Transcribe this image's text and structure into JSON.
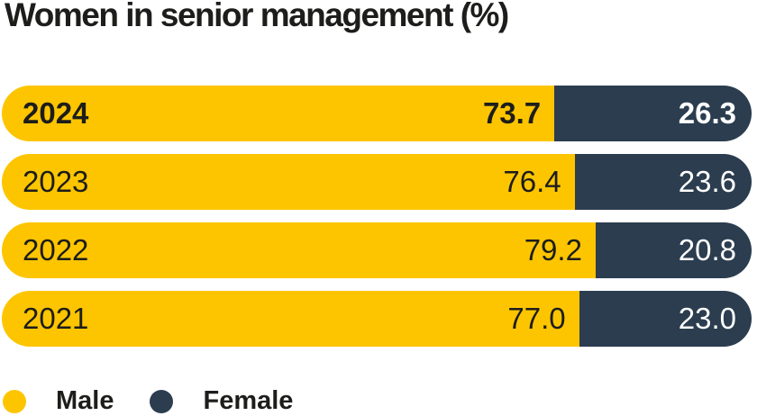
{
  "title": "Women in senior management (%)",
  "colors": {
    "male": "#FDC500",
    "female": "#2B3D4F",
    "text": "#1D1D1B",
    "value_text_on_dark": "#FFFFFF"
  },
  "legend": {
    "items": [
      {
        "label": "Male",
        "color_key": "male",
        "swatch": "circle"
      },
      {
        "label": "Female",
        "color_key": "female",
        "swatch": "circle"
      }
    ],
    "position": "bottom-left"
  },
  "chart_data": {
    "type": "bar",
    "orientation": "horizontal",
    "stacked": true,
    "title": "Women in senior management (%)",
    "categories": [
      "2024",
      "2023",
      "2022",
      "2021"
    ],
    "series": [
      {
        "name": "Male",
        "values": [
          73.7,
          76.4,
          79.2,
          77.0
        ]
      },
      {
        "name": "Female",
        "values": [
          26.3,
          23.6,
          20.8,
          23.0
        ]
      }
    ],
    "xlim": [
      0,
      100
    ],
    "value_labels": "inside-right-aligned, one decimal",
    "emphasized_category": "2024",
    "grid": false,
    "axes_visible": false
  }
}
